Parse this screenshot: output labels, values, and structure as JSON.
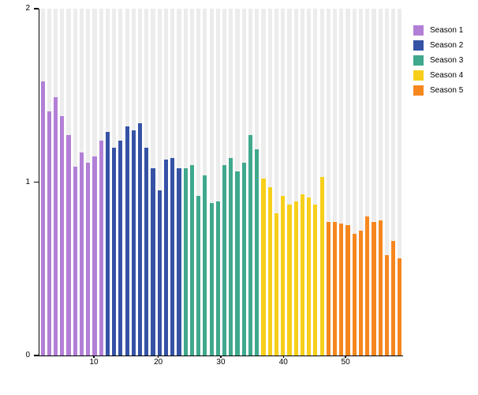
{
  "chart_data": {
    "type": "bar",
    "title": "",
    "xlabel": "",
    "ylabel": "",
    "ylim": [
      0,
      2
    ],
    "grid": "off",
    "backdrop": {
      "color": "#ececec",
      "value": 2.0
    },
    "legend_position": "top-right",
    "y_axis": {
      "max": 2,
      "ticks": [
        {
          "label": "2",
          "value": 2
        },
        {
          "label": "1",
          "value": 1
        },
        {
          "label": "0",
          "value": 0
        }
      ]
    },
    "x_axis": {
      "ticks": [
        {
          "label": "10"
        },
        {
          "label": "20"
        },
        {
          "label": "30"
        },
        {
          "label": "40"
        },
        {
          "label": "50"
        }
      ]
    },
    "series": [
      {
        "name": "Season 1",
        "color": "#b27fd6",
        "values": [
          1.58,
          1.41,
          1.49,
          1.38,
          1.27,
          1.09,
          1.17,
          1.11,
          1.15,
          1.24
        ]
      },
      {
        "name": "Season 2",
        "color": "#3552a5",
        "values": [
          1.29,
          1.2,
          1.24,
          1.32,
          1.3,
          1.34,
          1.2,
          1.08,
          0.95,
          1.13,
          1.14,
          1.08
        ]
      },
      {
        "name": "Season 3",
        "color": "#3fa88d",
        "values": [
          1.08,
          1.1,
          0.92,
          1.04,
          0.88,
          0.89,
          1.1,
          1.14,
          1.06,
          1.11,
          1.27,
          1.19
        ]
      },
      {
        "name": "Season 4",
        "color": "#f7cf1a",
        "values": [
          1.02,
          0.97,
          0.82,
          0.92,
          0.87,
          0.89,
          0.93,
          0.91,
          0.87,
          1.03
        ]
      },
      {
        "name": "Season 5",
        "color": "#f6871f",
        "values": [
          0.77,
          0.77,
          0.76,
          0.75,
          0.7,
          0.72,
          0.8,
          0.77,
          0.78,
          0.58,
          0.66,
          0.56
        ]
      }
    ]
  }
}
